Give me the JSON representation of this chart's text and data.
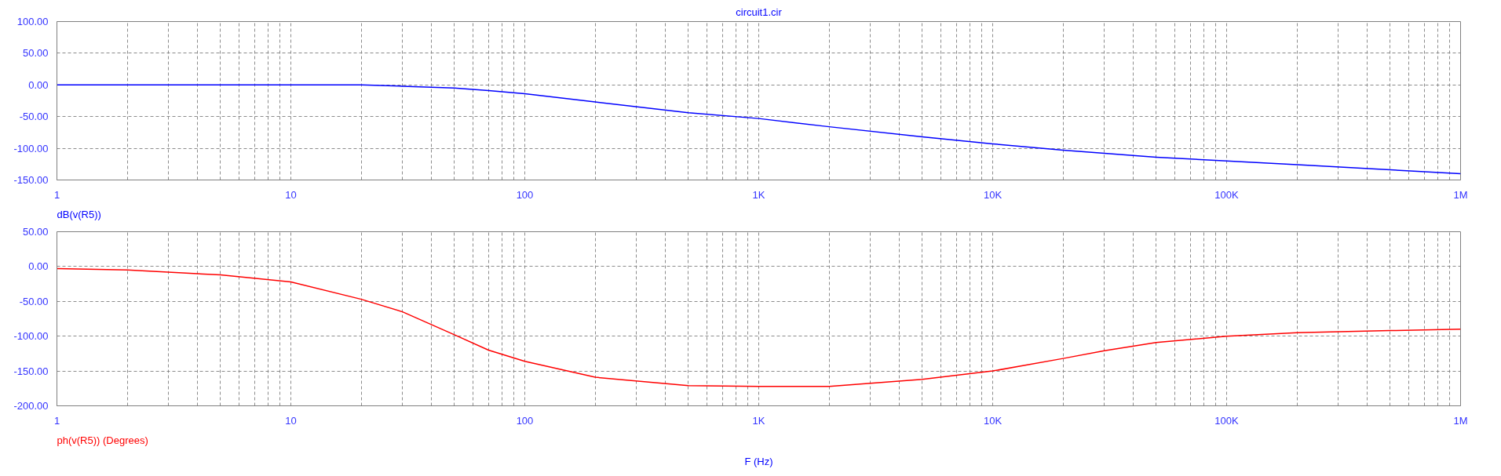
{
  "chart_data": [
    {
      "type": "line",
      "title": "circuit1.cir",
      "log": "x",
      "grid": true,
      "line_style": "solid",
      "xlim": [
        1,
        1000000
      ],
      "xticks": [
        1,
        {
          "value": 2,
          "label": null
        },
        {
          "value": 3,
          "label": null
        },
        {
          "value": 4,
          "label": null
        },
        {
          "value": 5,
          "label": null
        },
        {
          "value": 6,
          "label": null
        },
        {
          "value": 7,
          "label": null
        },
        {
          "value": 8,
          "label": null
        },
        {
          "value": 9,
          "label": null
        },
        10,
        {
          "value": 20,
          "label": null
        },
        {
          "value": 30,
          "label": null
        },
        {
          "value": 40,
          "label": null
        },
        {
          "value": 50,
          "label": null
        },
        {
          "value": 60,
          "label": null
        },
        {
          "value": 70,
          "label": null
        },
        {
          "value": 80,
          "label": null
        },
        {
          "value": 90,
          "label": null
        },
        100,
        {
          "value": 200,
          "label": null
        },
        {
          "value": 300,
          "label": null
        },
        {
          "value": 400,
          "label": null
        },
        {
          "value": 500,
          "label": null
        },
        {
          "value": 600,
          "label": null
        },
        {
          "value": 700,
          "label": null
        },
        {
          "value": 800,
          "label": null
        },
        {
          "value": 900,
          "label": null
        },
        {
          "value": 1000,
          "label": "1K"
        },
        {
          "value": 2000,
          "label": null
        },
        {
          "value": 3000,
          "label": null
        },
        {
          "value": 4000,
          "label": null
        },
        {
          "value": 5000,
          "label": null
        },
        {
          "value": 6000,
          "label": null
        },
        {
          "value": 7000,
          "label": null
        },
        {
          "value": 8000,
          "label": null
        },
        {
          "value": 9000,
          "label": null
        },
        {
          "value": 10000,
          "label": "10K"
        },
        {
          "value": 20000,
          "label": null
        },
        {
          "value": 30000,
          "label": null
        },
        {
          "value": 40000,
          "label": null
        },
        {
          "value": 50000,
          "label": null
        },
        {
          "value": 60000,
          "label": null
        },
        {
          "value": 70000,
          "label": null
        },
        {
          "value": 80000,
          "label": null
        },
        {
          "value": 90000,
          "label": null
        },
        {
          "value": 100000,
          "label": "100K"
        },
        {
          "value": 200000,
          "label": null
        },
        {
          "value": 300000,
          "label": null
        },
        {
          "value": 400000,
          "label": null
        },
        {
          "value": 500000,
          "label": null
        },
        {
          "value": 600000,
          "label": null
        },
        {
          "value": 700000,
          "label": null
        },
        {
          "value": 800000,
          "label": null
        },
        {
          "value": 900000,
          "label": null
        },
        {
          "value": 1000000,
          "label": "1M"
        }
      ],
      "ylim": [
        -150,
        100
      ],
      "yticks": [
        {
          "value": -150,
          "label": "-150.00"
        },
        {
          "value": -100,
          "label": "-100.00"
        },
        {
          "value": -50,
          "label": "-50.00"
        },
        {
          "value": 0,
          "label": "0.00"
        },
        {
          "value": 50,
          "label": "50.00"
        },
        {
          "value": 100,
          "label": "100.00"
        }
      ],
      "series": [
        {
          "name": "dB(v(R5))",
          "color": "#0000ff",
          "x": [
            1,
            10,
            20,
            30,
            50,
            70,
            100,
            200,
            500,
            1000,
            2000,
            5000,
            10000,
            20000,
            50000,
            100000,
            200000,
            500000,
            1000000
          ],
          "values": [
            0,
            0,
            0,
            -2,
            -5,
            -9,
            -14,
            -27,
            -44,
            -53,
            -66,
            -82,
            -93,
            -103,
            -114,
            -120,
            -126,
            -134,
            -140
          ]
        }
      ]
    },
    {
      "type": "line",
      "xlabel": "F (Hz)",
      "log": "x",
      "grid": true,
      "line_style": "solid",
      "xlim": [
        1,
        1000000
      ],
      "xticks": [
        1,
        {
          "value": 2,
          "label": null
        },
        {
          "value": 3,
          "label": null
        },
        {
          "value": 4,
          "label": null
        },
        {
          "value": 5,
          "label": null
        },
        {
          "value": 6,
          "label": null
        },
        {
          "value": 7,
          "label": null
        },
        {
          "value": 8,
          "label": null
        },
        {
          "value": 9,
          "label": null
        },
        10,
        {
          "value": 20,
          "label": null
        },
        {
          "value": 30,
          "label": null
        },
        {
          "value": 40,
          "label": null
        },
        {
          "value": 50,
          "label": null
        },
        {
          "value": 60,
          "label": null
        },
        {
          "value": 70,
          "label": null
        },
        {
          "value": 80,
          "label": null
        },
        {
          "value": 90,
          "label": null
        },
        100,
        {
          "value": 200,
          "label": null
        },
        {
          "value": 300,
          "label": null
        },
        {
          "value": 400,
          "label": null
        },
        {
          "value": 500,
          "label": null
        },
        {
          "value": 600,
          "label": null
        },
        {
          "value": 700,
          "label": null
        },
        {
          "value": 800,
          "label": null
        },
        {
          "value": 900,
          "label": null
        },
        {
          "value": 1000,
          "label": "1K"
        },
        {
          "value": 2000,
          "label": null
        },
        {
          "value": 3000,
          "label": null
        },
        {
          "value": 4000,
          "label": null
        },
        {
          "value": 5000,
          "label": null
        },
        {
          "value": 6000,
          "label": null
        },
        {
          "value": 7000,
          "label": null
        },
        {
          "value": 8000,
          "label": null
        },
        {
          "value": 9000,
          "label": null
        },
        {
          "value": 10000,
          "label": "10K"
        },
        {
          "value": 20000,
          "label": null
        },
        {
          "value": 30000,
          "label": null
        },
        {
          "value": 40000,
          "label": null
        },
        {
          "value": 50000,
          "label": null
        },
        {
          "value": 60000,
          "label": null
        },
        {
          "value": 70000,
          "label": null
        },
        {
          "value": 80000,
          "label": null
        },
        {
          "value": 90000,
          "label": null
        },
        {
          "value": 100000,
          "label": "100K"
        },
        {
          "value": 200000,
          "label": null
        },
        {
          "value": 300000,
          "label": null
        },
        {
          "value": 400000,
          "label": null
        },
        {
          "value": 500000,
          "label": null
        },
        {
          "value": 600000,
          "label": null
        },
        {
          "value": 700000,
          "label": null
        },
        {
          "value": 800000,
          "label": null
        },
        {
          "value": 900000,
          "label": null
        },
        {
          "value": 1000000,
          "label": "1M"
        }
      ],
      "ylim": [
        -200,
        50
      ],
      "yticks": [
        {
          "value": -200,
          "label": "-200.00"
        },
        {
          "value": -150,
          "label": "-150.00"
        },
        {
          "value": -100,
          "label": "-100.00"
        },
        {
          "value": -50,
          "label": "-50.00"
        },
        {
          "value": 0,
          "label": "0.00"
        },
        {
          "value": 50,
          "label": "50.00"
        }
      ],
      "series": [
        {
          "name": "ph(v(R5)) (Degrees)",
          "color": "#ff0000",
          "x": [
            1,
            2,
            5,
            10,
            20,
            30,
            50,
            70,
            100,
            200,
            500,
            1000,
            2000,
            5000,
            10000,
            20000,
            30000,
            50000,
            100000,
            200000,
            500000,
            1000000
          ],
          "values": [
            -3,
            -5,
            -12,
            -22,
            -47,
            -65,
            -98,
            -120,
            -136,
            -159,
            -171,
            -172,
            -172,
            -162,
            -150,
            -132,
            -121,
            -109,
            -100,
            -95,
            -92,
            -90
          ]
        }
      ]
    }
  ]
}
